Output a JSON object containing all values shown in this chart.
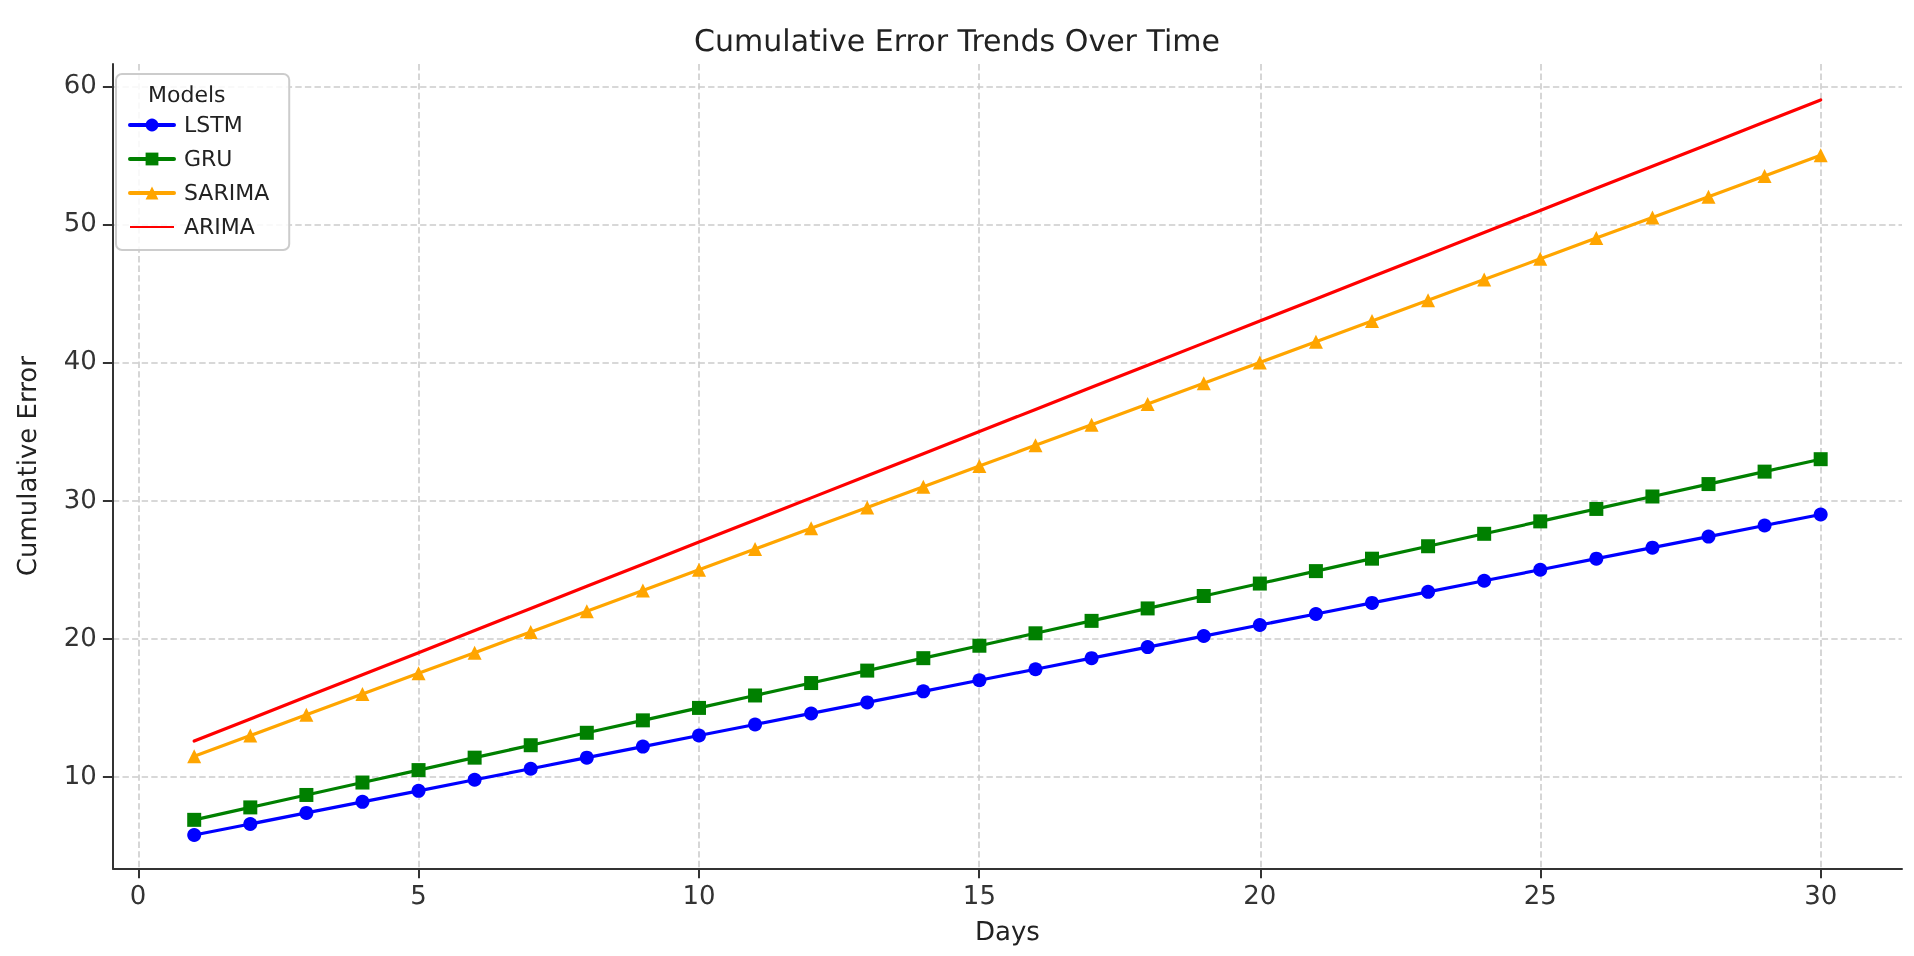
{
  "chart_data": {
    "type": "line",
    "title": "Cumulative Error Trends Over Time",
    "xlabel": "Days",
    "ylabel": "Cumulative Error",
    "legend_title": "Models",
    "legend": "top left",
    "grid": true,
    "x": [
      1,
      2,
      3,
      4,
      5,
      6,
      7,
      8,
      9,
      10,
      11,
      12,
      13,
      14,
      15,
      16,
      17,
      18,
      19,
      20,
      21,
      22,
      23,
      24,
      25,
      26,
      27,
      28,
      29,
      30
    ],
    "xlim": [
      -0.45,
      31.45
    ],
    "xticks": [
      0,
      5,
      10,
      15,
      20,
      25,
      30
    ],
    "ylim": [
      3.4,
      61.6
    ],
    "yticks": [
      10,
      20,
      30,
      40,
      50,
      60
    ],
    "series": [
      {
        "name": "LSTM",
        "color": "#0000ff",
        "marker": "circle",
        "values": [
          5.8,
          6.6,
          7.4,
          8.2,
          9.0,
          9.8,
          10.6,
          11.4,
          12.2,
          13.0,
          13.8,
          14.6,
          15.4,
          16.2,
          17.0,
          17.8,
          18.6,
          19.4,
          20.2,
          21.0,
          21.8,
          22.6,
          23.4,
          24.2,
          25.0,
          25.8,
          26.6,
          27.4,
          28.2,
          29.0
        ]
      },
      {
        "name": "GRU",
        "color": "#008000",
        "marker": "square",
        "values": [
          6.9,
          7.8,
          8.7,
          9.6,
          10.5,
          11.4,
          12.3,
          13.2,
          14.1,
          15.0,
          15.9,
          16.8,
          17.7,
          18.6,
          19.5,
          20.4,
          21.3,
          22.2,
          23.1,
          24.0,
          24.9,
          25.8,
          26.7,
          27.6,
          28.5,
          29.4,
          30.3,
          31.2,
          32.1,
          33.0
        ]
      },
      {
        "name": "SARIMA",
        "color": "#ffa500",
        "marker": "triangle",
        "values": [
          11.5,
          13,
          14.5,
          16,
          17.5,
          19,
          20.5,
          22,
          23.5,
          25,
          26.5,
          28,
          29.5,
          31,
          32.5,
          34,
          35.5,
          37,
          38.5,
          40,
          41.5,
          43,
          44.5,
          46,
          47.5,
          49,
          50.5,
          52,
          53.5,
          55
        ]
      },
      {
        "name": "ARIMA",
        "color": "#ff0000",
        "marker": "none",
        "values": [
          12.6,
          14.2,
          15.8,
          17.4,
          19,
          20.6,
          22.2,
          23.8,
          25.4,
          27,
          28.6,
          30.2,
          31.8,
          33.4,
          35,
          36.6,
          38.2,
          39.8,
          41.4,
          43,
          44.6,
          46.2,
          47.8,
          49.4,
          51,
          52.6,
          54.2,
          55.8,
          57.4,
          59
        ]
      }
    ]
  }
}
